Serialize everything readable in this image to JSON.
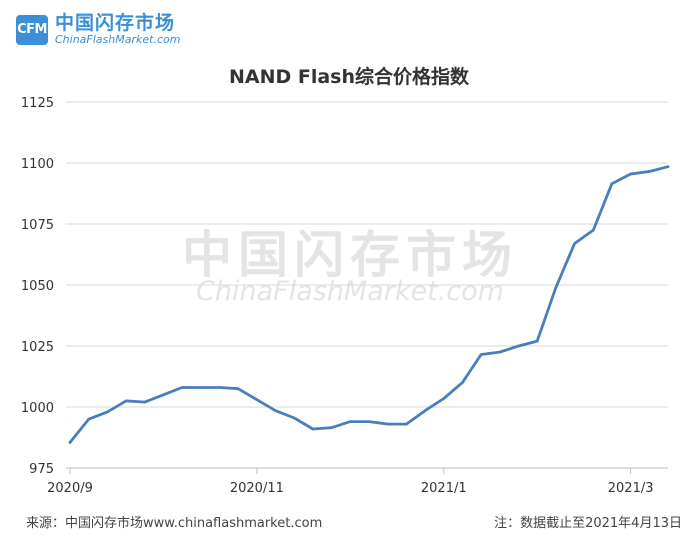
{
  "logo": {
    "badge": "CFM",
    "name_cn": "中国闪存市场",
    "name_en": "ChinaFlashMarket.com"
  },
  "watermark": {
    "cn": "中国闪存市场",
    "en": "ChinaFlashMarket.com"
  },
  "footer": {
    "source": "来源：中国闪存市场www.chinaflashmarket.com",
    "note": "注：数据截止至2021年4月13日"
  },
  "chart_data": {
    "type": "line",
    "title": "NAND Flash综合价格指数",
    "xlabel": "",
    "ylabel": "",
    "ylim": [
      975,
      1125
    ],
    "yticks": [
      975,
      1000,
      1025,
      1050,
      1075,
      1100,
      1125
    ],
    "xtick_labels": [
      "2020/9",
      "2020/11",
      "2021/1",
      "2021/3"
    ],
    "xtick_index": [
      0,
      10,
      20,
      30
    ],
    "grid": true,
    "line_color": "#4a7ebb",
    "series": [
      {
        "values": [
          985.5,
          995.0,
          998.0,
          1002.5,
          1002.0,
          1005.0,
          1008.0,
          1008.0,
          1008.0,
          1007.5,
          1003.0,
          998.5,
          995.5,
          991.0,
          991.5,
          994.0,
          994.0,
          993.0,
          993.0,
          998.5,
          1003.5,
          1010.0,
          1021.5,
          1022.5,
          1025.0,
          1027.0,
          1049.0,
          1067.0,
          1072.5,
          1091.5,
          1095.5,
          1096.5,
          1098.5
        ]
      }
    ]
  }
}
